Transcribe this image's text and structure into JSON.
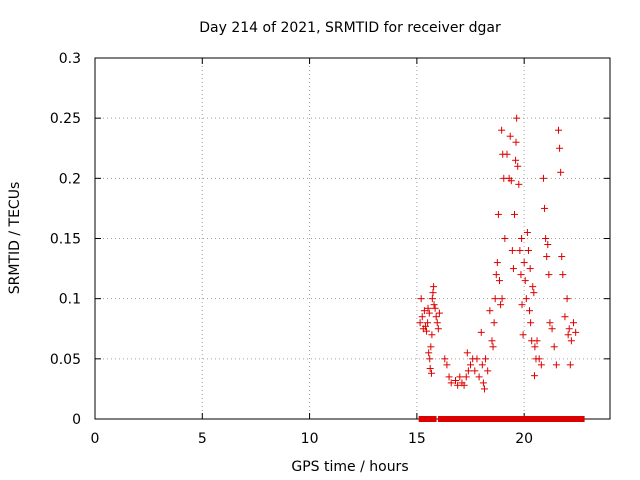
{
  "chart_data": {
    "type": "scatter",
    "title": "Day 214 of 2021, SRMTID for receiver dgar",
    "xlabel": "GPS time / hours",
    "ylabel": "SRMTID / TECUs",
    "xlim": [
      0,
      24
    ],
    "ylim": [
      0,
      0.3
    ],
    "grid": true,
    "marker": "+",
    "color": "#dd0000",
    "x_ticks": [
      0,
      5,
      10,
      15,
      20
    ],
    "x_tick_labels": [
      "0",
      "5",
      "10",
      "15",
      "20"
    ],
    "y_ticks": [
      0,
      0.05,
      0.1,
      0.15,
      0.2,
      0.25,
      0.3
    ],
    "y_tick_labels": [
      "0",
      "0.05",
      "0.1",
      "0.15",
      "0.2",
      "0.25",
      "0.3"
    ],
    "series": [
      {
        "name": "SRMTID",
        "points": [
          [
            15.15,
            0.08
          ],
          [
            15.2,
            0.1
          ],
          [
            15.25,
            0.085
          ],
          [
            15.3,
            0.075
          ],
          [
            15.35,
            0.09
          ],
          [
            15.4,
            0.077
          ],
          [
            15.45,
            0.073
          ],
          [
            15.5,
            0.08
          ],
          [
            15.55,
            0.055
          ],
          [
            15.6,
            0.05
          ],
          [
            15.62,
            0.042
          ],
          [
            15.65,
            0.06
          ],
          [
            15.7,
            0.07
          ],
          [
            15.72,
            0.1
          ],
          [
            15.75,
            0.105
          ],
          [
            15.78,
            0.11
          ],
          [
            15.8,
            0.095
          ],
          [
            15.85,
            0.092
          ],
          [
            15.9,
            0.085
          ],
          [
            15.95,
            0.08
          ],
          [
            16.0,
            0.075
          ],
          [
            16.05,
            0.088
          ],
          [
            15.68,
            0.038
          ],
          [
            15.58,
            0.088
          ],
          [
            15.52,
            0.092
          ],
          [
            16.3,
            0.05
          ],
          [
            16.4,
            0.045
          ],
          [
            16.5,
            0.035
          ],
          [
            16.6,
            0.03
          ],
          [
            16.8,
            0.032
          ],
          [
            16.9,
            0.028
          ],
          [
            17.0,
            0.035
          ],
          [
            17.1,
            0.03
          ],
          [
            17.2,
            0.028
          ],
          [
            17.3,
            0.035
          ],
          [
            17.35,
            0.055
          ],
          [
            17.4,
            0.04
          ],
          [
            17.5,
            0.045
          ],
          [
            17.6,
            0.05
          ],
          [
            17.7,
            0.04
          ],
          [
            17.8,
            0.05
          ],
          [
            17.9,
            0.035
          ],
          [
            18.0,
            0.072
          ],
          [
            18.05,
            0.045
          ],
          [
            18.1,
            0.03
          ],
          [
            18.15,
            0.025
          ],
          [
            18.2,
            0.05
          ],
          [
            18.3,
            0.04
          ],
          [
            18.4,
            0.09
          ],
          [
            18.5,
            0.065
          ],
          [
            18.55,
            0.06
          ],
          [
            18.6,
            0.08
          ],
          [
            18.65,
            0.1
          ],
          [
            18.7,
            0.12
          ],
          [
            18.75,
            0.13
          ],
          [
            18.8,
            0.17
          ],
          [
            18.85,
            0.115
          ],
          [
            18.9,
            0.095
          ],
          [
            18.95,
            0.24
          ],
          [
            19.0,
            0.22
          ],
          [
            19.05,
            0.2
          ],
          [
            19.1,
            0.15
          ],
          [
            19.2,
            0.22
          ],
          [
            19.3,
            0.2
          ],
          [
            19.35,
            0.235
          ],
          [
            19.4,
            0.198
          ],
          [
            19.45,
            0.14
          ],
          [
            19.5,
            0.125
          ],
          [
            19.55,
            0.17
          ],
          [
            19.6,
            0.215
          ],
          [
            19.62,
            0.23
          ],
          [
            19.65,
            0.25
          ],
          [
            19.7,
            0.21
          ],
          [
            19.75,
            0.195
          ],
          [
            19.8,
            0.14
          ],
          [
            19.85,
            0.12
          ],
          [
            19.9,
            0.095
          ],
          [
            19.95,
            0.07
          ],
          [
            20.0,
            0.13
          ],
          [
            20.05,
            0.115
          ],
          [
            20.1,
            0.1
          ],
          [
            20.15,
            0.155
          ],
          [
            20.2,
            0.14
          ],
          [
            20.25,
            0.09
          ],
          [
            20.3,
            0.08
          ],
          [
            20.35,
            0.065
          ],
          [
            20.4,
            0.11
          ],
          [
            20.45,
            0.105
          ],
          [
            20.5,
            0.06
          ],
          [
            20.55,
            0.05
          ],
          [
            20.6,
            0.065
          ],
          [
            20.7,
            0.05
          ],
          [
            20.8,
            0.045
          ],
          [
            20.9,
            0.2
          ],
          [
            20.95,
            0.175
          ],
          [
            21.0,
            0.15
          ],
          [
            21.05,
            0.135
          ],
          [
            21.1,
            0.145
          ],
          [
            21.15,
            0.12
          ],
          [
            21.2,
            0.08
          ],
          [
            21.3,
            0.075
          ],
          [
            21.4,
            0.06
          ],
          [
            21.5,
            0.045
          ],
          [
            21.6,
            0.24
          ],
          [
            21.65,
            0.225
          ],
          [
            21.7,
            0.205
          ],
          [
            21.75,
            0.135
          ],
          [
            21.8,
            0.12
          ],
          [
            21.9,
            0.085
          ],
          [
            22.0,
            0.1
          ],
          [
            22.05,
            0.07
          ],
          [
            22.1,
            0.075
          ],
          [
            22.15,
            0.045
          ],
          [
            22.2,
            0.065
          ],
          [
            22.3,
            0.08
          ],
          [
            22.4,
            0.072
          ],
          [
            20.48,
            0.036
          ],
          [
            20.28,
            0.125
          ],
          [
            19.88,
            0.15
          ],
          [
            18.97,
            0.1
          ],
          [
            15.2,
            0,
            "s"
          ],
          [
            15.4,
            0,
            "s"
          ],
          [
            15.6,
            0,
            "s"
          ],
          [
            15.8,
            0,
            "s"
          ],
          [
            16.1,
            0,
            "s"
          ],
          [
            16.3,
            0,
            "s"
          ],
          [
            16.5,
            0,
            "s"
          ],
          [
            16.7,
            0,
            "s"
          ],
          [
            16.9,
            0,
            "s"
          ],
          [
            17.1,
            0,
            "s"
          ],
          [
            17.3,
            0,
            "s"
          ],
          [
            17.5,
            0,
            "s"
          ],
          [
            17.7,
            0,
            "s"
          ],
          [
            17.9,
            0,
            "s"
          ],
          [
            18.1,
            0,
            "s"
          ],
          [
            18.3,
            0,
            "s"
          ],
          [
            18.5,
            0,
            "s"
          ],
          [
            18.7,
            0,
            "s"
          ],
          [
            18.9,
            0,
            "s"
          ],
          [
            19.1,
            0,
            "s"
          ],
          [
            19.3,
            0,
            "s"
          ],
          [
            19.5,
            0,
            "s"
          ],
          [
            19.7,
            0,
            "s"
          ],
          [
            19.9,
            0,
            "s"
          ],
          [
            20.1,
            0,
            "s"
          ],
          [
            20.3,
            0,
            "s"
          ],
          [
            20.5,
            0,
            "s"
          ],
          [
            20.7,
            0,
            "s"
          ],
          [
            20.9,
            0,
            "s"
          ],
          [
            21.1,
            0,
            "s"
          ],
          [
            21.3,
            0,
            "s"
          ],
          [
            21.5,
            0,
            "s"
          ],
          [
            21.7,
            0,
            "s"
          ],
          [
            21.9,
            0,
            "s"
          ],
          [
            22.1,
            0,
            "s"
          ],
          [
            22.3,
            0,
            "s"
          ],
          [
            22.5,
            0,
            "s"
          ],
          [
            22.7,
            0,
            "s"
          ]
        ]
      }
    ]
  }
}
